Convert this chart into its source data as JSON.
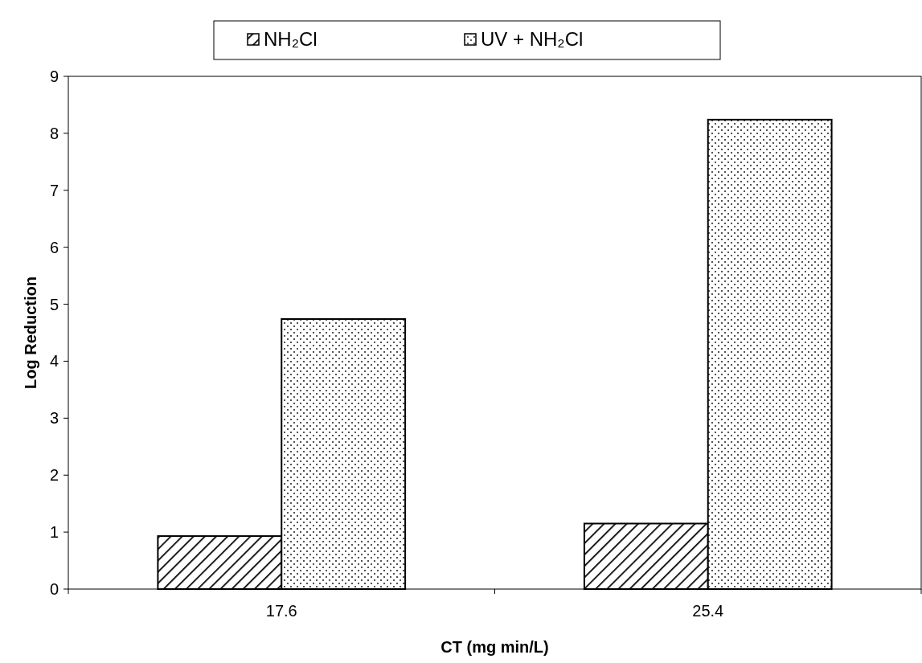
{
  "chart_data": {
    "type": "bar",
    "categories": [
      "17.6",
      "25.4"
    ],
    "series": [
      {
        "name": "NH₂Cl",
        "color": "#000000",
        "values": [
          0.93,
          1.15
        ]
      },
      {
        "name": "UV + NH₂Cl",
        "color": "#000000",
        "values": [
          4.74,
          8.24
        ]
      }
    ],
    "xlabel": "CT (mg min/L)",
    "ylabel": "Log Reduction",
    "ylim": [
      0,
      9
    ],
    "yticks": [
      0,
      1,
      2,
      3,
      4,
      5,
      6,
      7,
      8,
      9
    ],
    "grid": false,
    "legend": "top"
  }
}
